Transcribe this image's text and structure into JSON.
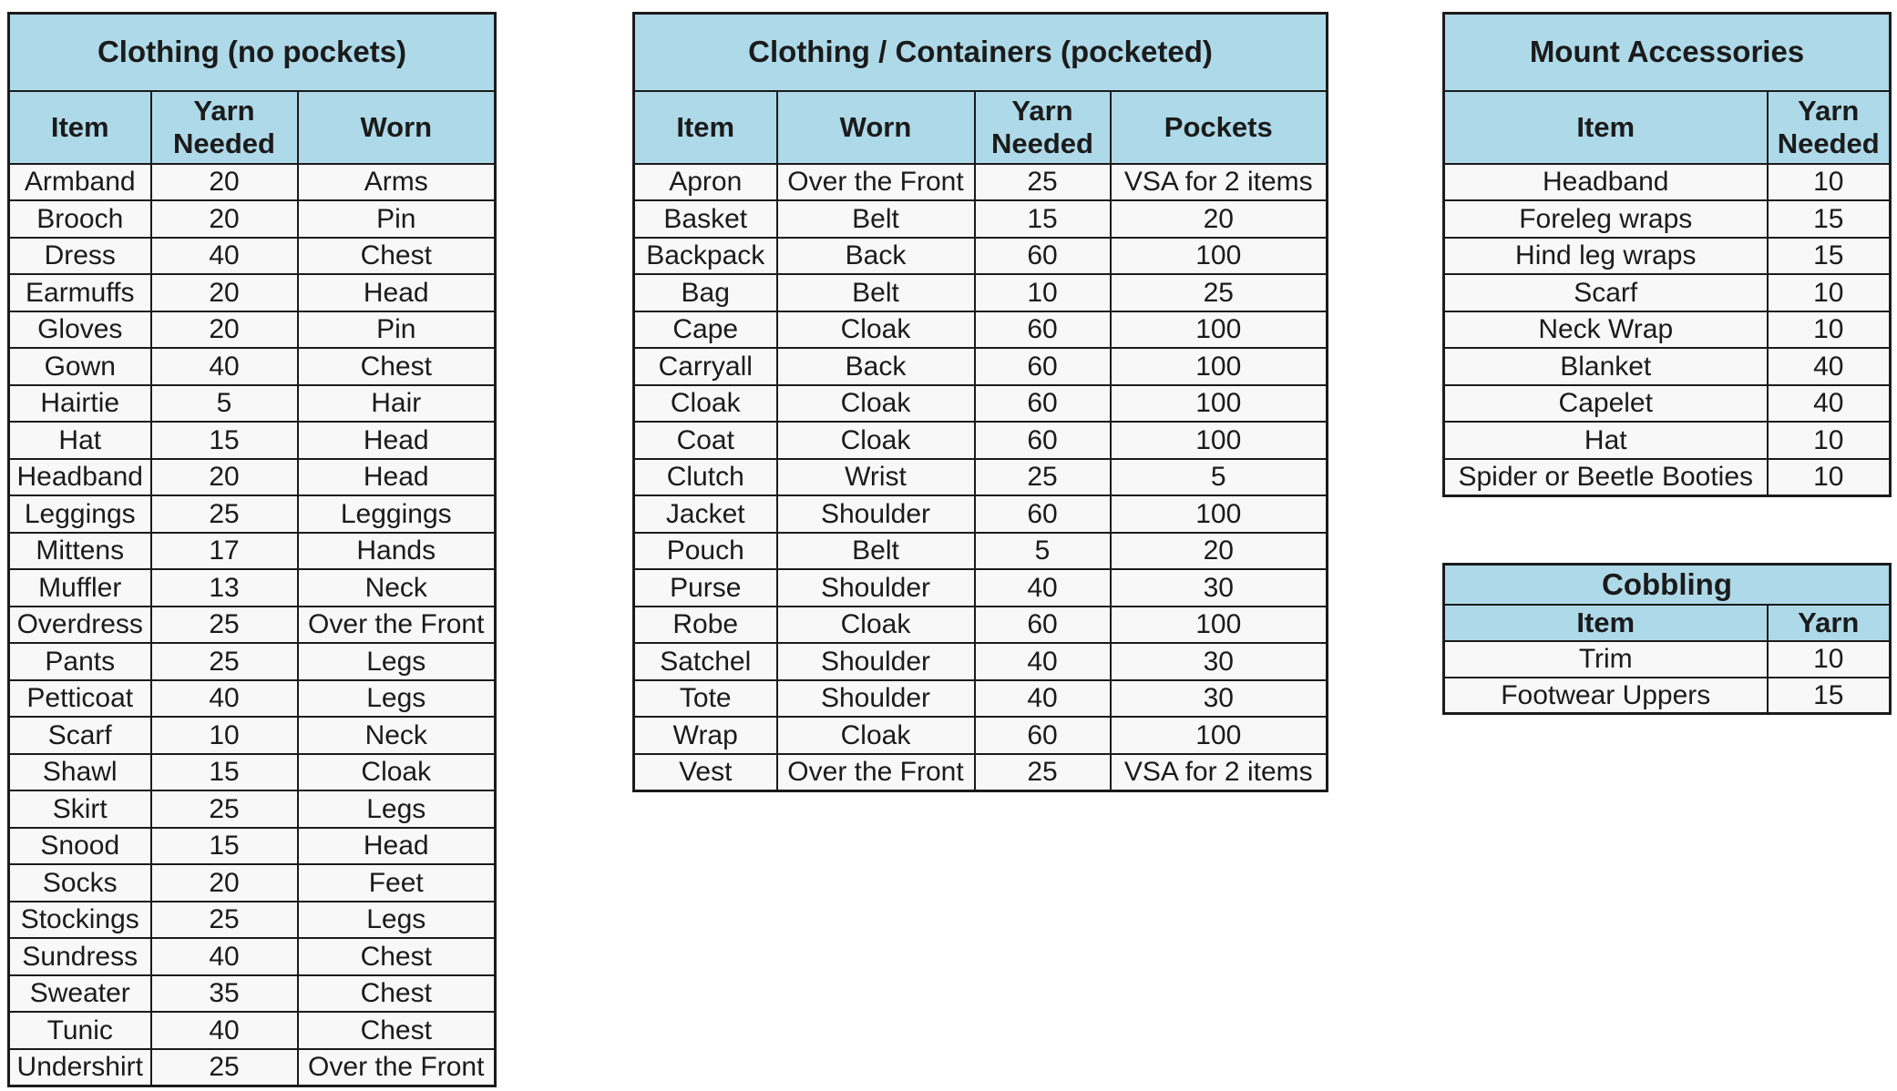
{
  "colors": {
    "header_bg": "#AED9E8",
    "row_bg": "#F8F8F8",
    "border": "#1B1B1B",
    "text": "#1B1B1B",
    "page_bg": "#FFFFFF"
  },
  "tables": [
    {
      "id": "clothing-no-pockets",
      "title": "Clothing (no pockets)",
      "columns": [
        "Item",
        "Yarn Needed",
        "Worn"
      ],
      "rows": [
        [
          "Armband",
          "20",
          "Arms"
        ],
        [
          "Brooch",
          "20",
          "Pin"
        ],
        [
          "Dress",
          "40",
          "Chest"
        ],
        [
          "Earmuffs",
          "20",
          "Head"
        ],
        [
          "Gloves",
          "20",
          "Pin"
        ],
        [
          "Gown",
          "40",
          "Chest"
        ],
        [
          "Hairtie",
          "5",
          "Hair"
        ],
        [
          "Hat",
          "15",
          "Head"
        ],
        [
          "Headband",
          "20",
          "Head"
        ],
        [
          "Leggings",
          "25",
          "Leggings"
        ],
        [
          "Mittens",
          "17",
          "Hands"
        ],
        [
          "Muffler",
          "13",
          "Neck"
        ],
        [
          "Overdress",
          "25",
          "Over the Front"
        ],
        [
          "Pants",
          "25",
          "Legs"
        ],
        [
          "Petticoat",
          "40",
          "Legs"
        ],
        [
          "Scarf",
          "10",
          "Neck"
        ],
        [
          "Shawl",
          "15",
          "Cloak"
        ],
        [
          "Skirt",
          "25",
          "Legs"
        ],
        [
          "Snood",
          "15",
          "Head"
        ],
        [
          "Socks",
          "20",
          "Feet"
        ],
        [
          "Stockings",
          "25",
          "Legs"
        ],
        [
          "Sundress",
          "40",
          "Chest"
        ],
        [
          "Sweater",
          "35",
          "Chest"
        ],
        [
          "Tunic",
          "40",
          "Chest"
        ],
        [
          "Undershirt",
          "25",
          "Over the Front"
        ]
      ]
    },
    {
      "id": "clothing-containers-pocketed",
      "title": "Clothing / Containers (pocketed)",
      "columns": [
        "Item",
        "Worn",
        "Yarn Needed",
        "Pockets"
      ],
      "rows": [
        [
          "Apron",
          "Over the Front",
          "25",
          "VSA for 2 items"
        ],
        [
          "Basket",
          "Belt",
          "15",
          "20"
        ],
        [
          "Backpack",
          "Back",
          "60",
          "100"
        ],
        [
          "Bag",
          "Belt",
          "10",
          "25"
        ],
        [
          "Cape",
          "Cloak",
          "60",
          "100"
        ],
        [
          "Carryall",
          "Back",
          "60",
          "100"
        ],
        [
          "Cloak",
          "Cloak",
          "60",
          "100"
        ],
        [
          "Coat",
          "Cloak",
          "60",
          "100"
        ],
        [
          "Clutch",
          "Wrist",
          "25",
          "5"
        ],
        [
          "Jacket",
          "Shoulder",
          "60",
          "100"
        ],
        [
          "Pouch",
          "Belt",
          "5",
          "20"
        ],
        [
          "Purse",
          "Shoulder",
          "40",
          "30"
        ],
        [
          "Robe",
          "Cloak",
          "60",
          "100"
        ],
        [
          "Satchel",
          "Shoulder",
          "40",
          "30"
        ],
        [
          "Tote",
          "Shoulder",
          "40",
          "30"
        ],
        [
          "Wrap",
          "Cloak",
          "60",
          "100"
        ],
        [
          "Vest",
          "Over the Front",
          "25",
          "VSA for 2 items"
        ]
      ]
    },
    {
      "id": "mount-accessories",
      "title": "Mount Accessories",
      "columns": [
        "Item",
        "Yarn Needed"
      ],
      "rows": [
        [
          "Headband",
          "10"
        ],
        [
          "Foreleg wraps",
          "15"
        ],
        [
          "Hind leg wraps",
          "15"
        ],
        [
          "Scarf",
          "10"
        ],
        [
          "Neck Wrap",
          "10"
        ],
        [
          "Blanket",
          "40"
        ],
        [
          "Capelet",
          "40"
        ],
        [
          "Hat",
          "10"
        ],
        [
          "Spider or Beetle Booties",
          "10"
        ]
      ]
    },
    {
      "id": "cobbling",
      "title": "Cobbling",
      "columns": [
        "Item",
        "Yarn"
      ],
      "rows": [
        [
          "Trim",
          "10"
        ],
        [
          "Footwear Uppers",
          "15"
        ]
      ]
    }
  ]
}
